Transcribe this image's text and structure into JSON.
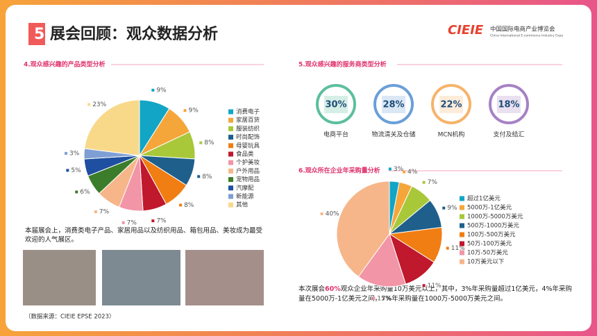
{
  "header": {
    "number": "5",
    "title": "展会回顾：观众数据分析",
    "logo": "CIEIE",
    "logo_cn": "中国国际电商产业博览会",
    "logo_en": "China International E-commerce Industry Expo"
  },
  "chart_data": [
    {
      "type": "pie",
      "title": "4.观众感兴趣的产品类型分析",
      "categories": [
        "消费电子",
        "家居百货",
        "服装纺织",
        "时尚配饰",
        "母婴玩具",
        "食品类",
        "个护美妆",
        "户外用品",
        "宠物用品",
        "汽摩配",
        "新能源",
        "其他"
      ],
      "values": [
        9,
        9,
        8,
        8,
        8,
        7,
        7,
        7,
        6,
        5,
        3,
        23
      ],
      "value_labels": [
        "9%",
        "9%",
        "8%",
        "8%",
        "8%",
        "7%",
        "7%",
        "7%",
        "6%",
        "5%",
        "3%",
        "23%"
      ],
      "colors": [
        "#12a5c6",
        "#f5a63b",
        "#a8c83a",
        "#1f5f8b",
        "#f07e13",
        "#c0182c",
        "#f295a6",
        "#f6b68a",
        "#3b7d2a",
        "#1e4fa0",
        "#7f9fd4",
        "#f8d98a"
      ],
      "legend": "right"
    },
    {
      "type": "pie",
      "title": "6.观众所在企业年采购量分析",
      "categories": [
        "超过1亿美元",
        "5000万-1亿美元",
        "1000万-5000万美元",
        "500万-1000万美元",
        "100万-500万美元",
        "50万-100万美元",
        "10万-50万美元",
        "10万美元以下"
      ],
      "values": [
        3,
        4,
        7,
        9,
        11,
        11,
        15,
        40
      ],
      "value_labels": [
        "3%",
        "4%",
        "7%",
        "9%",
        "11%",
        "11%",
        "15%",
        "40%"
      ],
      "colors": [
        "#12a5c6",
        "#f5a63b",
        "#a8c83a",
        "#1f5f8b",
        "#f07e13",
        "#c0182c",
        "#f295a6",
        "#f6b68a"
      ],
      "legend": "right"
    }
  ],
  "services": {
    "title": "5.观众感兴趣的服务商类型分析",
    "items": [
      {
        "value": "30%",
        "label": "电商平台"
      },
      {
        "value": "28%",
        "label": "物流清关及仓储"
      },
      {
        "value": "22%",
        "label": "MCN机构"
      },
      {
        "value": "18%",
        "label": "支付及结汇"
      }
    ]
  },
  "summary1": "本届展会上，消费类电子产品、家居用品以及纺织用品、箱包用品、美妆成为最受欢迎的人气展区。",
  "summary2": {
    "before": "本次展会",
    "highlight": "60%",
    "after": "观众企业年采购量10万美元以上，其中，3%年采购量超过1亿美元，4%年采购量在5000万-1亿美元之间，7%年采购量在1000万-5000万美元之间。"
  },
  "source": "（数据来源：CIEIE EPSE 2023）"
}
